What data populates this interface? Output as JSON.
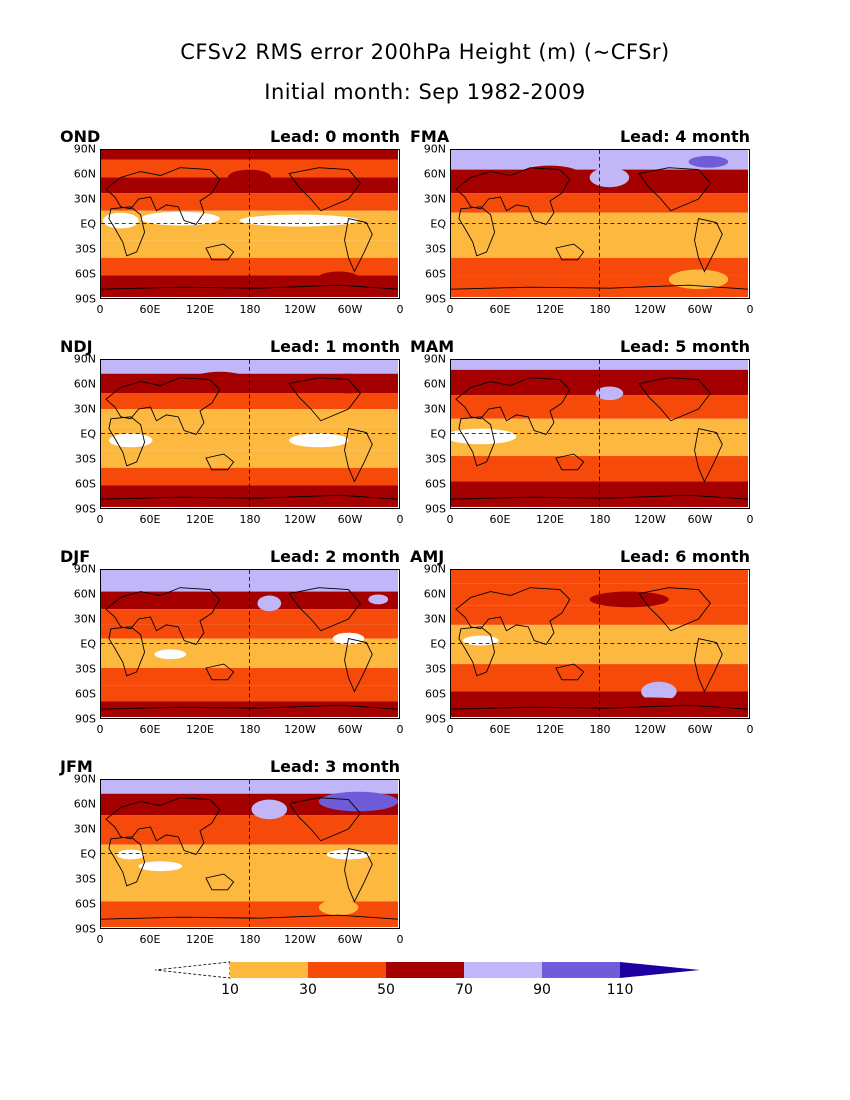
{
  "header": {
    "title": "CFSv2 RMS error 200hPa Height (m) (~CFSr)",
    "subtitle": "Initial month: Sep 1982-2009"
  },
  "panels": [
    {
      "season": "OND",
      "lead": "Lead: 0 month"
    },
    {
      "season": "NDJ",
      "lead": "Lead: 1 month"
    },
    {
      "season": "DJF",
      "lead": "Lead: 2 month"
    },
    {
      "season": "JFM",
      "lead": "Lead: 3 month"
    },
    {
      "season": "FMA",
      "lead": "Lead: 4 month"
    },
    {
      "season": "MAM",
      "lead": "Lead: 5 month"
    },
    {
      "season": "AMJ",
      "lead": "Lead: 6 month"
    }
  ],
  "axes": {
    "lat_labels": [
      "90N",
      "60N",
      "30N",
      "EQ",
      "30S",
      "60S",
      "90S"
    ],
    "lon_labels": [
      "0",
      "60E",
      "120E",
      "180",
      "120W",
      "60W",
      "0"
    ]
  },
  "colorbar": {
    "labels": [
      "10",
      "30",
      "50",
      "70",
      "90",
      "110"
    ],
    "colors": [
      "#ffffff",
      "#fdb93f",
      "#f54a0a",
      "#a50000",
      "#c0b6f8",
      "#6f5cd8",
      "#1e00a0"
    ]
  },
  "colors": {
    "c0": "#ffffff",
    "c1": "#fdb93f",
    "c2": "#f54a0a",
    "c3": "#a50000",
    "c4": "#c0b6f8",
    "c5": "#6f5cd8"
  }
}
